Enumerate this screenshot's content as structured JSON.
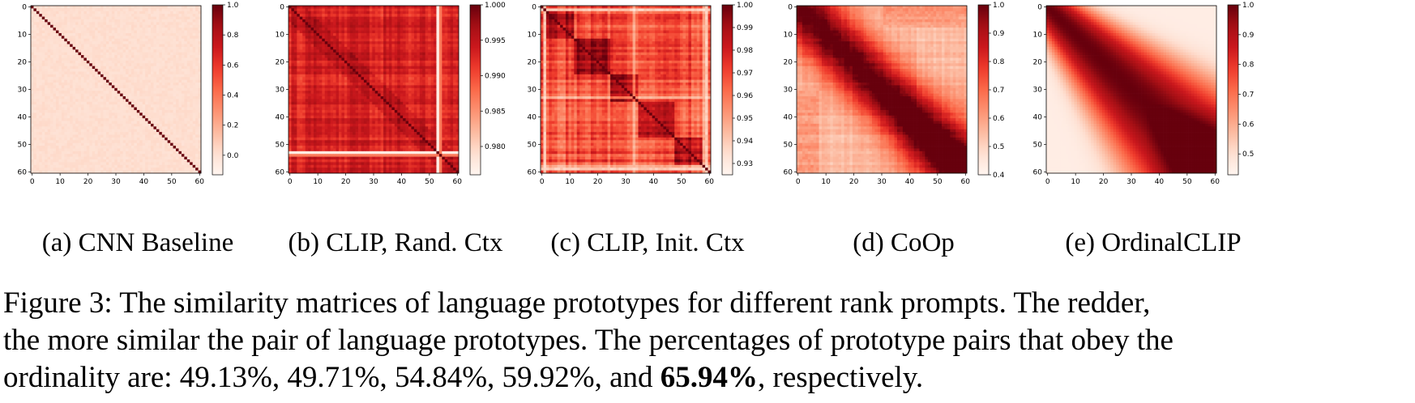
{
  "chart_data": [
    {
      "type": "heatmap",
      "id": "a",
      "pattern": "identity",
      "caption": "(a) CNN Baseline",
      "x_ticks": [
        "0",
        "10",
        "20",
        "30",
        "40",
        "50",
        "60"
      ],
      "y_ticks": [
        "0",
        "10",
        "20",
        "30",
        "40",
        "50",
        "60"
      ],
      "colorbar_ticks": [
        "1.0",
        "0.8",
        "0.6",
        "0.4",
        "0.2",
        "0.0"
      ],
      "value_range": [
        -0.13,
        1.0
      ],
      "colormap": "Reds"
    },
    {
      "type": "heatmap",
      "id": "b",
      "pattern": "noisy-high",
      "caption": "(b) CLIP, Rand. Ctx",
      "x_ticks": [
        "0",
        "10",
        "20",
        "30",
        "40",
        "50",
        "60"
      ],
      "y_ticks": [
        "0",
        "10",
        "20",
        "30",
        "40",
        "50",
        "60"
      ],
      "colorbar_ticks": [
        "1.000",
        "0.995",
        "0.990",
        "0.985",
        "0.980"
      ],
      "value_range": [
        0.976,
        1.0
      ],
      "colormap": "Reds"
    },
    {
      "type": "heatmap",
      "id": "c",
      "pattern": "block",
      "caption": "(c) CLIP, Init. Ctx",
      "x_ticks": [
        "0",
        "10",
        "20",
        "30",
        "40",
        "50",
        "60"
      ],
      "y_ticks": [
        "0",
        "10",
        "20",
        "30",
        "40",
        "50",
        "60"
      ],
      "colorbar_ticks": [
        "1.00",
        "0.99",
        "0.98",
        "0.97",
        "0.96",
        "0.95",
        "0.94",
        "0.93"
      ],
      "value_range": [
        0.925,
        1.0
      ],
      "colormap": "Reds"
    },
    {
      "type": "heatmap",
      "id": "d",
      "pattern": "band-noisy",
      "caption": "(d) CoOp",
      "x_ticks": [
        "0",
        "10",
        "20",
        "30",
        "40",
        "50",
        "60"
      ],
      "y_ticks": [
        "0",
        "10",
        "20",
        "30",
        "40",
        "50",
        "60"
      ],
      "colorbar_ticks": [
        "1.0",
        "0.9",
        "0.8",
        "0.7",
        "0.6",
        "0.5",
        "0.4"
      ],
      "value_range": [
        0.4,
        1.0
      ],
      "colormap": "Reds"
    },
    {
      "type": "heatmap",
      "id": "e",
      "pattern": "band-smooth",
      "caption": "(e) OrdinalCLIP",
      "x_ticks": [
        "0",
        "10",
        "20",
        "30",
        "40",
        "50",
        "60"
      ],
      "y_ticks": [
        "0",
        "10",
        "20",
        "30",
        "40",
        "50",
        "60"
      ],
      "colorbar_ticks": [
        "1.0",
        "0.9",
        "0.8",
        "0.7",
        "0.6",
        "0.5"
      ],
      "value_range": [
        0.43,
        1.0
      ],
      "colormap": "Reds"
    }
  ],
  "caption": {
    "line1": "Figure 3: The similarity matrices of language prototypes for different rank prompts. The redder,",
    "line2": "the more similar the pair of language prototypes. The percentages of prototype pairs that obey the",
    "line3_prefix": "ordinality are: 49.13%, 49.71%, 54.84%, 59.92%, and ",
    "line3_bold": "65.94%",
    "line3_suffix": ", respectively."
  }
}
